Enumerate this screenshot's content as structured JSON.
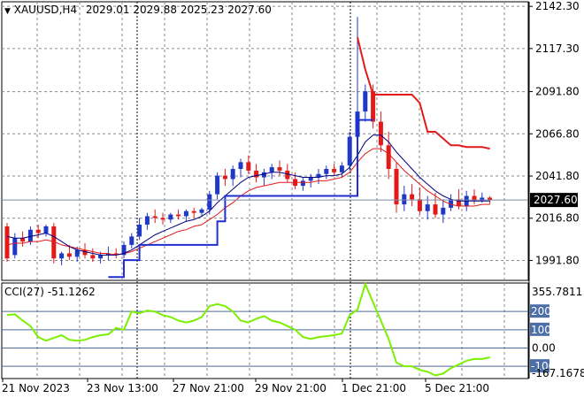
{
  "header": {
    "symbol": "XAUUSD,H4",
    "open": "2029.01",
    "high": "2029.88",
    "low": "2025.23",
    "close": "2027.60"
  },
  "indicator": {
    "name": "CCI(27)",
    "value": "-51.1262"
  },
  "colors": {
    "candle_up": "#1f39c6",
    "candle_down": "#e21a1a",
    "ma_fast": "#000080",
    "ma_slow": "#e21a1a",
    "step_line": "#1f2fd0",
    "stop_line": "#e21a1a",
    "cci_line": "#7cf000",
    "level_line": "#4a6a9a",
    "grid": "#8a8a8a",
    "badge_bg": "#4d6fa8"
  },
  "chart_data": [
    {
      "type": "candlestick",
      "title": "XAUUSD,H4",
      "price_axis": {
        "ticks": [
          "2142.30",
          "2117.30",
          "2091.80",
          "2066.80",
          "2041.80",
          "2016.80",
          "1991.80"
        ],
        "tick_values": [
          2142.3,
          2117.3,
          2091.8,
          2066.8,
          2041.8,
          2016.8,
          1991.8
        ],
        "range": [
          1980,
          2145
        ]
      },
      "last_price": "2027.60",
      "x_labels": [
        "21 Nov 2023",
        "23 Nov 13:00",
        "27 Nov 21:00",
        "29 Nov 21:00",
        "1 Dec 21:00",
        "5 Dec 21:00"
      ],
      "session_markers": [
        "23 Nov 13:00",
        "1 Dec 21:00"
      ],
      "candles": [
        [
          2012,
          2014,
          1991,
          1993
        ],
        [
          1995,
          2008,
          1993,
          2005
        ],
        [
          2005,
          2009,
          2000,
          2003
        ],
        [
          2003,
          2012,
          2001,
          2010
        ],
        [
          2010,
          2013,
          2005,
          2008
        ],
        [
          2008,
          2013,
          2006,
          2012
        ],
        [
          2012,
          2014,
          1990,
          1993
        ],
        [
          1993,
          1997,
          1989,
          1996
        ],
        [
          1996,
          2001,
          1992,
          1994
        ],
        [
          1994,
          2000,
          1991,
          1998
        ],
        [
          1998,
          2002,
          1993,
          1995
        ],
        [
          1995,
          1999,
          1991,
          1993
        ],
        [
          1993,
          1997,
          1990,
          1995
        ],
        [
          1995,
          2000,
          1992,
          1996
        ],
        [
          1996,
          1999,
          1993,
          1995
        ],
        [
          1995,
          2003,
          1993,
          2001
        ],
        [
          2001,
          2008,
          1999,
          2006
        ],
        [
          2006,
          2017,
          2004,
          2013
        ],
        [
          2013,
          2020,
          2010,
          2018
        ],
        [
          2018,
          2022,
          2014,
          2017
        ],
        [
          2017,
          2020,
          2013,
          2016
        ],
        [
          2016,
          2020,
          2014,
          2019
        ],
        [
          2019,
          2022,
          2016,
          2018
        ],
        [
          2018,
          2022,
          2015,
          2021
        ],
        [
          2021,
          2023,
          2017,
          2020
        ],
        [
          2020,
          2023,
          2018,
          2022
        ],
        [
          2022,
          2033,
          2019,
          2031
        ],
        [
          2031,
          2044,
          2028,
          2042
        ],
        [
          2042,
          2046,
          2036,
          2040
        ],
        [
          2040,
          2048,
          2036,
          2046
        ],
        [
          2046,
          2052,
          2041,
          2050
        ],
        [
          2050,
          2054,
          2043,
          2045
        ],
        [
          2045,
          2049,
          2038,
          2041
        ],
        [
          2041,
          2046,
          2036,
          2044
        ],
        [
          2044,
          2049,
          2040,
          2047
        ],
        [
          2047,
          2051,
          2042,
          2045
        ],
        [
          2045,
          2049,
          2038,
          2040
        ],
        [
          2040,
          2044,
          2034,
          2036
        ],
        [
          2036,
          2041,
          2033,
          2039
        ],
        [
          2039,
          2043,
          2035,
          2041
        ],
        [
          2041,
          2046,
          2037,
          2043
        ],
        [
          2043,
          2048,
          2040,
          2046
        ],
        [
          2046,
          2049,
          2042,
          2044
        ],
        [
          2044,
          2050,
          2041,
          2048
        ],
        [
          2048,
          2068,
          2045,
          2065
        ],
        [
          2065,
          2136,
          2060,
          2080
        ],
        [
          2080,
          2096,
          2074,
          2092
        ],
        [
          2092,
          2096,
          2070,
          2074
        ],
        [
          2074,
          2080,
          2056,
          2060
        ],
        [
          2060,
          2068,
          2040,
          2046
        ],
        [
          2046,
          2050,
          2020,
          2025
        ],
        [
          2025,
          2036,
          2021,
          2031
        ],
        [
          2031,
          2037,
          2024,
          2028
        ],
        [
          2028,
          2035,
          2019,
          2021
        ],
        [
          2021,
          2030,
          2016,
          2025
        ],
        [
          2025,
          2032,
          2017,
          2019
        ],
        [
          2019,
          2028,
          2014,
          2023
        ],
        [
          2023,
          2031,
          2021,
          2028
        ],
        [
          2028,
          2034,
          2022,
          2024
        ],
        [
          2024,
          2033,
          2021,
          2030
        ],
        [
          2030,
          2034,
          2025,
          2027
        ],
        [
          2027,
          2032,
          2026,
          2029
        ],
        [
          2029.01,
          2029.88,
          2025.23,
          2027.6
        ]
      ],
      "ma_fast": [
        2006,
        2005,
        2005,
        2006,
        2007,
        2008,
        2006,
        2003,
        2000,
        1998,
        1997,
        1996,
        1995,
        1995,
        1995,
        1996,
        1998,
        2001,
        2004,
        2007,
        2009,
        2011,
        2013,
        2015,
        2016,
        2018,
        2021,
        2026,
        2030,
        2034,
        2038,
        2041,
        2042,
        2043,
        2044,
        2044,
        2043,
        2042,
        2041,
        2041,
        2041,
        2042,
        2042,
        2043,
        2047,
        2054,
        2062,
        2066,
        2066,
        2062,
        2056,
        2051,
        2046,
        2041,
        2037,
        2033,
        2030,
        2028,
        2027,
        2027,
        2027,
        2027,
        2027
      ],
      "ma_slow": [
        2001,
        2002,
        2002,
        2003,
        2003,
        2004,
        2003,
        2001,
        2000,
        1999,
        1998,
        1997,
        1996,
        1996,
        1995,
        1996,
        1997,
        1999,
        2001,
        2003,
        2005,
        2007,
        2009,
        2010,
        2012,
        2013,
        2016,
        2019,
        2023,
        2026,
        2030,
        2033,
        2035,
        2036,
        2037,
        2038,
        2038,
        2038,
        2038,
        2038,
        2039,
        2039,
        2040,
        2041,
        2044,
        2050,
        2055,
        2058,
        2058,
        2055,
        2050,
        2045,
        2041,
        2037,
        2033,
        2030,
        2027,
        2025,
        2024,
        2024,
        2024,
        2025,
        2025
      ],
      "step_line": [
        null,
        null,
        null,
        null,
        null,
        null,
        null,
        null,
        null,
        null,
        null,
        null,
        null,
        1982,
        1982,
        1992,
        1992,
        2001,
        2001,
        2001,
        2001,
        2001,
        2001,
        2001,
        2001,
        2001,
        2001,
        2015,
        2030,
        2030,
        2030,
        2030,
        2030,
        2030,
        2030,
        2030,
        2030,
        2030,
        2030,
        2030,
        2030,
        2030,
        2030,
        2030,
        2030,
        2075,
        2075,
        2075,
        null,
        null,
        null,
        null,
        null,
        null,
        null,
        null,
        null,
        null,
        null,
        null,
        null,
        null,
        null
      ],
      "stop_line": [
        null,
        null,
        null,
        null,
        null,
        null,
        null,
        null,
        null,
        null,
        null,
        null,
        null,
        null,
        null,
        null,
        null,
        null,
        null,
        null,
        null,
        null,
        null,
        null,
        null,
        null,
        null,
        null,
        null,
        null,
        null,
        null,
        null,
        null,
        null,
        null,
        null,
        null,
        null,
        null,
        null,
        null,
        null,
        null,
        null,
        2124,
        2105,
        2090,
        2090,
        2090,
        2090,
        2090,
        2090,
        2085,
        2068,
        2068,
        2064,
        2060,
        2060,
        2059,
        2059,
        2059,
        2058
      ]
    },
    {
      "type": "line",
      "title": "CCI(27)",
      "value": "-51.1262",
      "axis_ticks": [
        "355.7811",
        "200",
        "100",
        "0.00",
        "-100",
        "-167.1678"
      ],
      "levels": [
        200,
        100,
        0,
        -100
      ],
      "range": [
        -167.1678,
        355.7811
      ],
      "values": [
        180,
        185,
        150,
        120,
        60,
        40,
        55,
        70,
        45,
        40,
        45,
        60,
        70,
        75,
        110,
        100,
        200,
        190,
        205,
        200,
        180,
        170,
        150,
        140,
        150,
        170,
        230,
        240,
        230,
        200,
        150,
        140,
        160,
        175,
        150,
        140,
        120,
        100,
        60,
        50,
        60,
        65,
        70,
        80,
        180,
        210,
        350,
        250,
        150,
        50,
        -80,
        -100,
        -100,
        -120,
        -130,
        -150,
        -140,
        -110,
        -90,
        -70,
        -60,
        -60,
        -51.1262
      ]
    }
  ]
}
